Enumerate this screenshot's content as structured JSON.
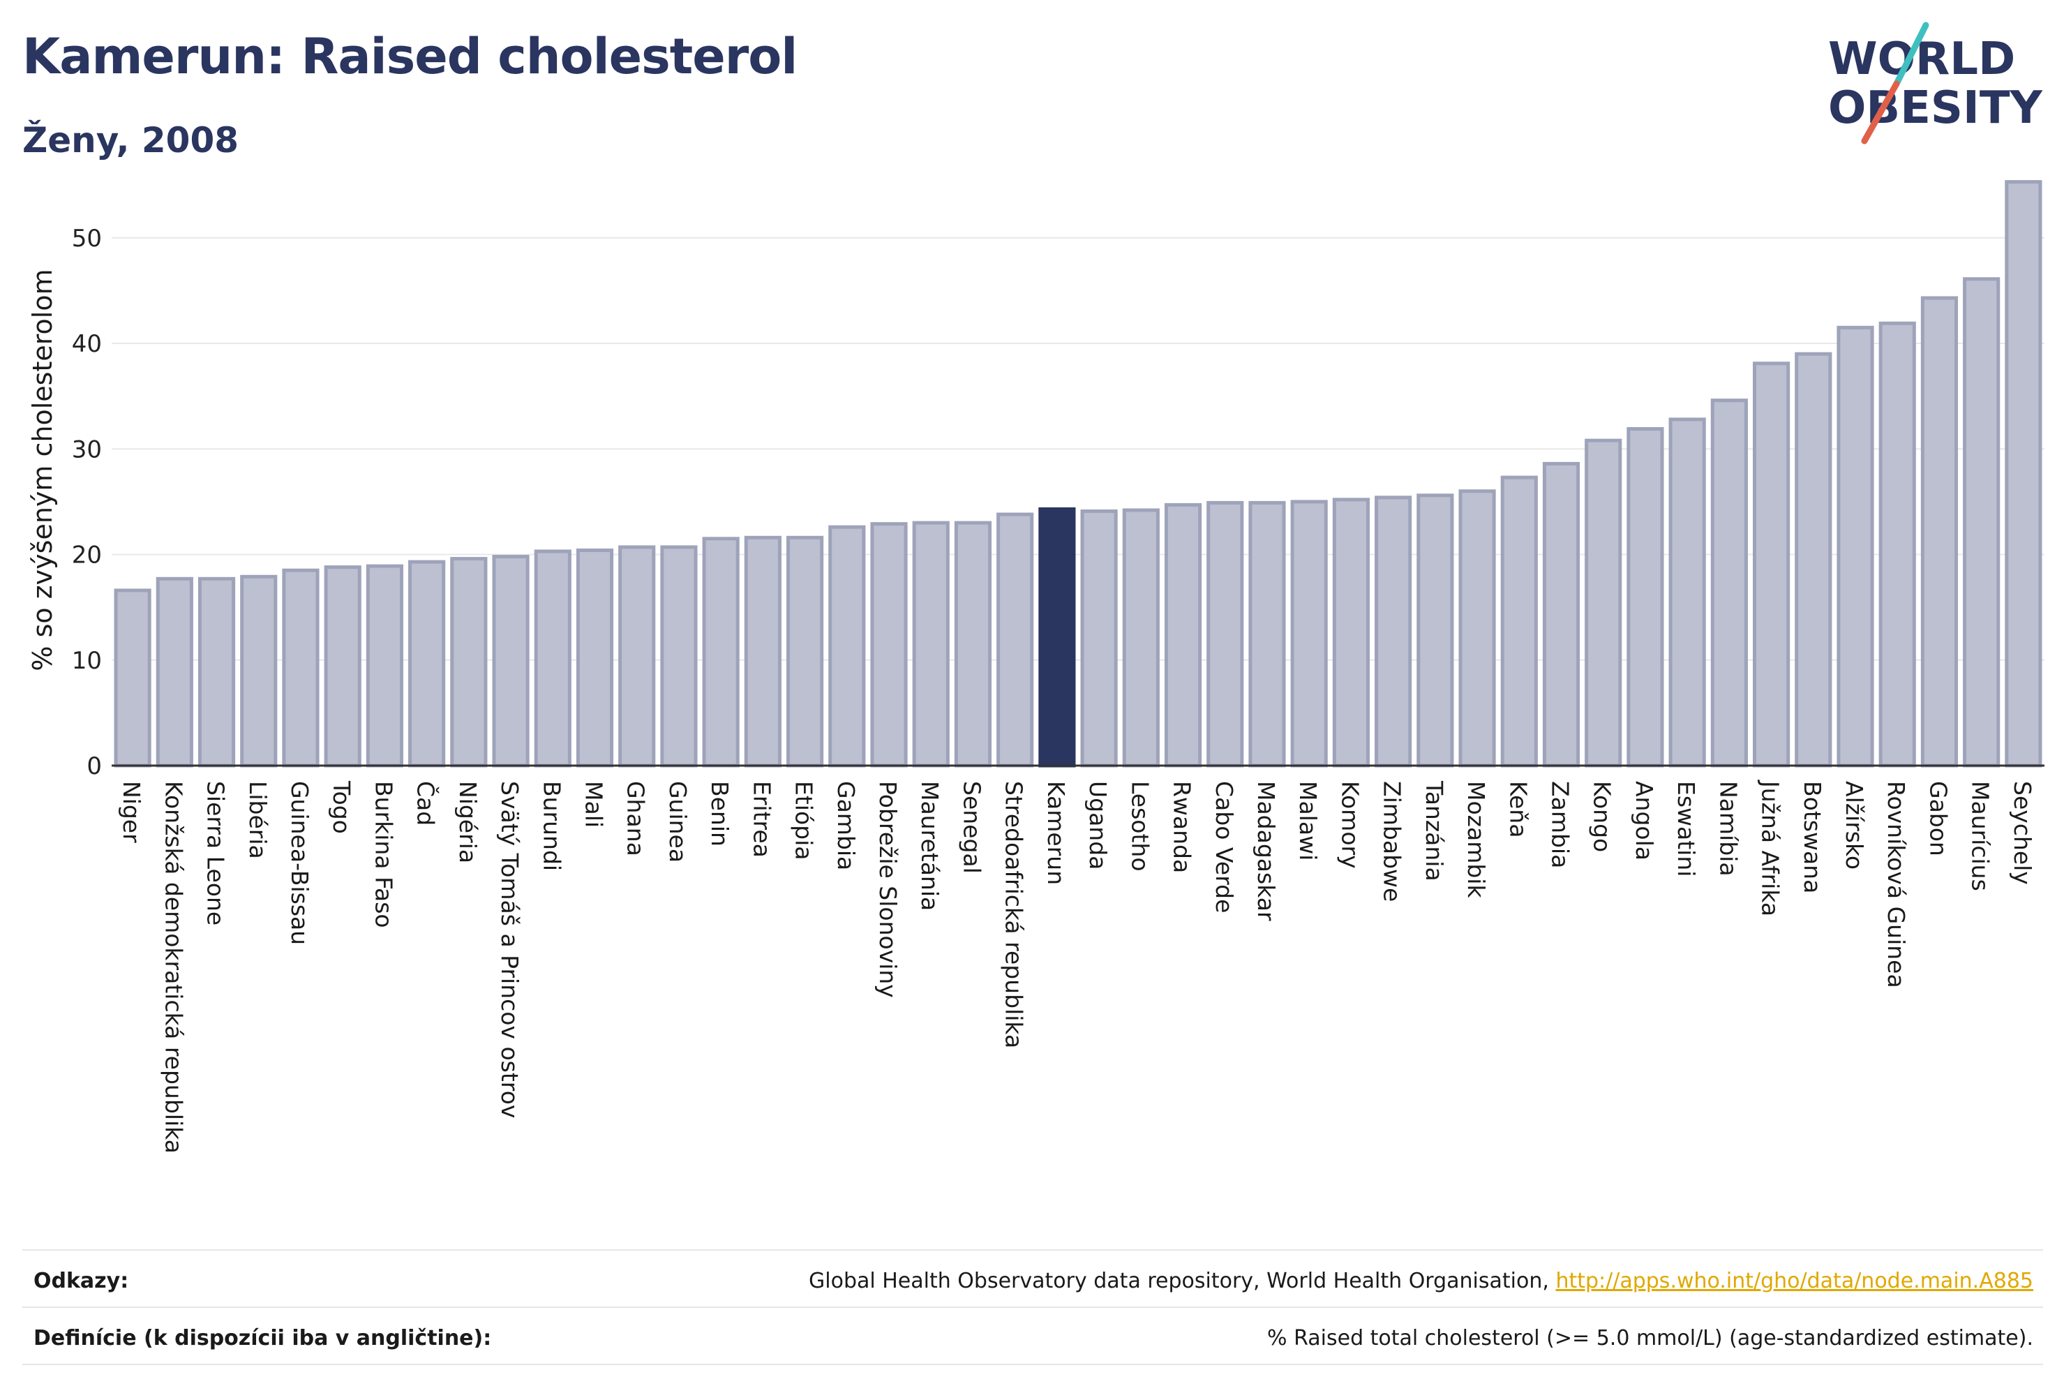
{
  "header": {
    "title": "Kamerun: Raised cholesterol",
    "subtitle": "Ženy, 2008"
  },
  "logo": {
    "line1": "WORLD",
    "line2": "OBESITY",
    "text_color": "#2a3560",
    "slash_color_top": "#3fbfbf",
    "slash_color_bottom": "#e0604a"
  },
  "chart_data": {
    "type": "bar",
    "ylabel": "% so zvýšeným cholesterolom",
    "ylim": [
      0,
      56
    ],
    "yticks": [
      0,
      10,
      20,
      30,
      40,
      50
    ],
    "grid": true,
    "highlight": "Kamerun",
    "colors": {
      "bar": "#bcc0d0",
      "bar_border": "#9ea3ba",
      "highlight": "#2a3560",
      "grid": "#e8e8e8",
      "axis": "#333333"
    },
    "categories": [
      "Niger",
      "Konžská demokratická republika",
      "Sierra Leone",
      "Libéria",
      "Guinea-Bissau",
      "Togo",
      "Burkina Faso",
      "Čad",
      "Nigéria",
      "Svätý Tomáš a Princov ostrov",
      "Burundi",
      "Mali",
      "Ghana",
      "Guinea",
      "Benin",
      "Eritrea",
      "Etiópia",
      "Gambia",
      "Pobrežie Slonoviny",
      "Mauretánia",
      "Senegal",
      "Stredoafrická republika",
      "Kamerun",
      "Uganda",
      "Lesotho",
      "Rwanda",
      "Cabo Verde",
      "Madagaskar",
      "Malawi",
      "Komory",
      "Zimbabwe",
      "Tanzánia",
      "Mozambik",
      "Keňa",
      "Zambia",
      "Kongo",
      "Angola",
      "Eswatini",
      "Namíbia",
      "Južná Afrika",
      "Botswana",
      "Alžírsko",
      "Rovníková Guinea",
      "Gabon",
      "Maurícius",
      "Seychely"
    ],
    "values": [
      16.6,
      17.7,
      17.7,
      17.9,
      18.5,
      18.8,
      18.9,
      19.3,
      19.6,
      19.8,
      20.3,
      20.4,
      20.7,
      20.7,
      21.5,
      21.6,
      21.6,
      22.6,
      22.9,
      23.0,
      23.0,
      23.8,
      24.3,
      24.1,
      24.2,
      24.7,
      24.9,
      24.9,
      25.0,
      25.2,
      25.4,
      25.6,
      26.0,
      27.3,
      28.6,
      30.8,
      31.9,
      32.8,
      34.6,
      38.1,
      39.0,
      41.5,
      41.9,
      44.3,
      46.1,
      55.3
    ]
  },
  "footer": {
    "sources_label": "Odkazy:",
    "sources_text": "Global Health Observatory data repository, World Health Organisation, ",
    "sources_link": "http://apps.who.int/gho/data/node.main.A885",
    "definitions_label": "Definície (k dispozícii iba v angličtine):",
    "definitions_text": "% Raised total cholesterol (>= 5.0 mmol/L) (age-standardized estimate)."
  }
}
